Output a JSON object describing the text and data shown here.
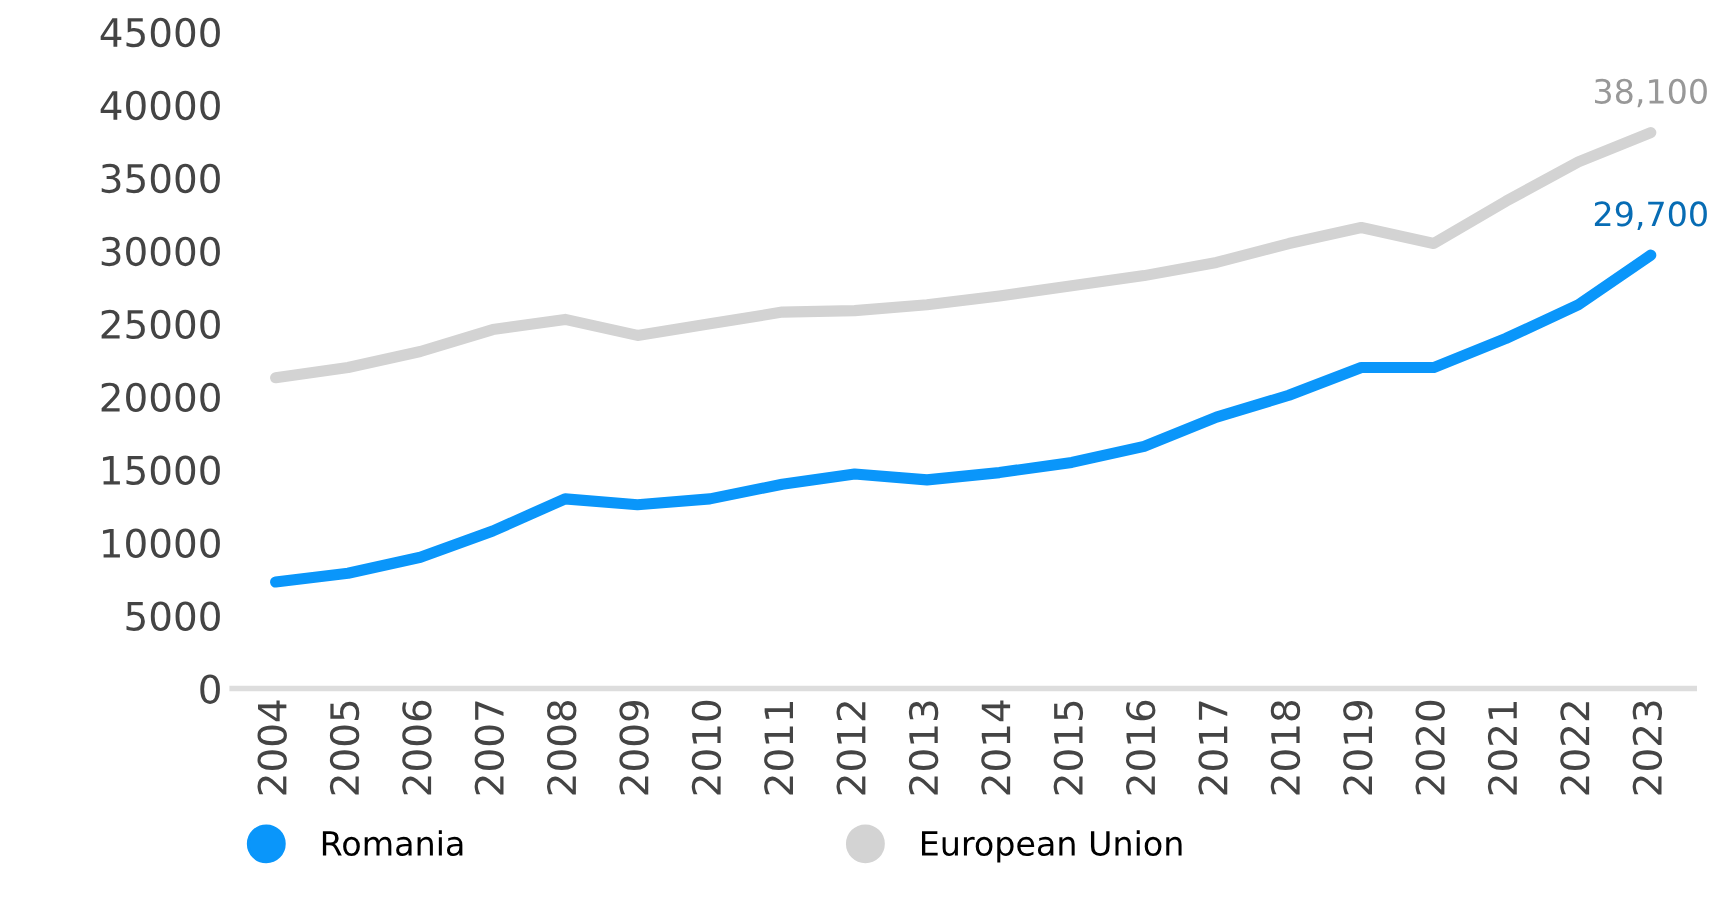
{
  "chart_data": {
    "type": "line",
    "categories": [
      "2004",
      "2005",
      "2006",
      "2007",
      "2008",
      "2009",
      "2010",
      "2011",
      "2012",
      "2013",
      "2014",
      "2015",
      "2016",
      "2017",
      "2018",
      "2019",
      "2020",
      "2021",
      "2022",
      "2023"
    ],
    "series": [
      {
        "name": "Romania",
        "color": "#0a96fa",
        "values": [
          7300,
          7900,
          9000,
          10800,
          13000,
          12600,
          13000,
          14000,
          14700,
          14300,
          14800,
          15500,
          16600,
          18600,
          20100,
          22000,
          22000,
          24000,
          26300,
          29700
        ],
        "value_labels": [
          null,
          null,
          null,
          null,
          null,
          null,
          null,
          null,
          null,
          null,
          null,
          null,
          null,
          null,
          null,
          null,
          null,
          null,
          null,
          "29,700"
        ]
      },
      {
        "name": "European Union",
        "color": "#d3d3d3",
        "values": [
          21300,
          22000,
          23100,
          24600,
          25300,
          24200,
          25000,
          25800,
          25900,
          26300,
          26900,
          27600,
          28300,
          29200,
          30500,
          31600,
          30500,
          33400,
          36100,
          38100
        ],
        "value_labels": [
          null,
          null,
          null,
          null,
          null,
          null,
          null,
          null,
          null,
          null,
          null,
          null,
          null,
          null,
          null,
          null,
          null,
          null,
          null,
          "38,100"
        ]
      }
    ],
    "ylim": [
      0,
      45000
    ],
    "yticks": [
      0,
      5000,
      10000,
      15000,
      20000,
      25000,
      30000,
      35000,
      40000,
      45000
    ],
    "grid": false,
    "legend": "bottom",
    "marker": "none",
    "line_style": "solid"
  }
}
